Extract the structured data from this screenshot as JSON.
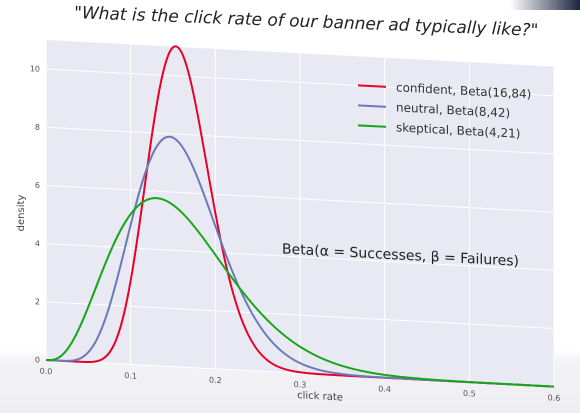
{
  "chart_data": {
    "type": "line",
    "title": "\"What is the click rate of our banner ad typically like?\"",
    "xlabel": "click rate",
    "ylabel": "density",
    "xlim": [
      0.0,
      0.6
    ],
    "ylim": [
      0,
      11
    ],
    "x_ticks": [
      "0.0",
      "0.1",
      "0.2",
      "0.3",
      "0.4",
      "0.5",
      "0.6"
    ],
    "y_ticks": [
      "0",
      "2",
      "4",
      "6",
      "8",
      "10"
    ],
    "grid": true,
    "legend_position": "top-right",
    "annotation": "Beta(α = Successes, β = Failures)",
    "series": [
      {
        "name": "confident, Beta(16,84)",
        "alpha": 16,
        "beta": 84,
        "color": "#e8002a"
      },
      {
        "name": "neutral, Beta(8,42)",
        "alpha": 8,
        "beta": 42,
        "color": "#6b7ab8"
      },
      {
        "name": "skeptical, Beta(4,21)",
        "alpha": 4,
        "beta": 21,
        "color": "#16a616"
      }
    ]
  },
  "colors": {
    "plot_background": "#e9e9f3",
    "gridline": "#ffffff"
  }
}
